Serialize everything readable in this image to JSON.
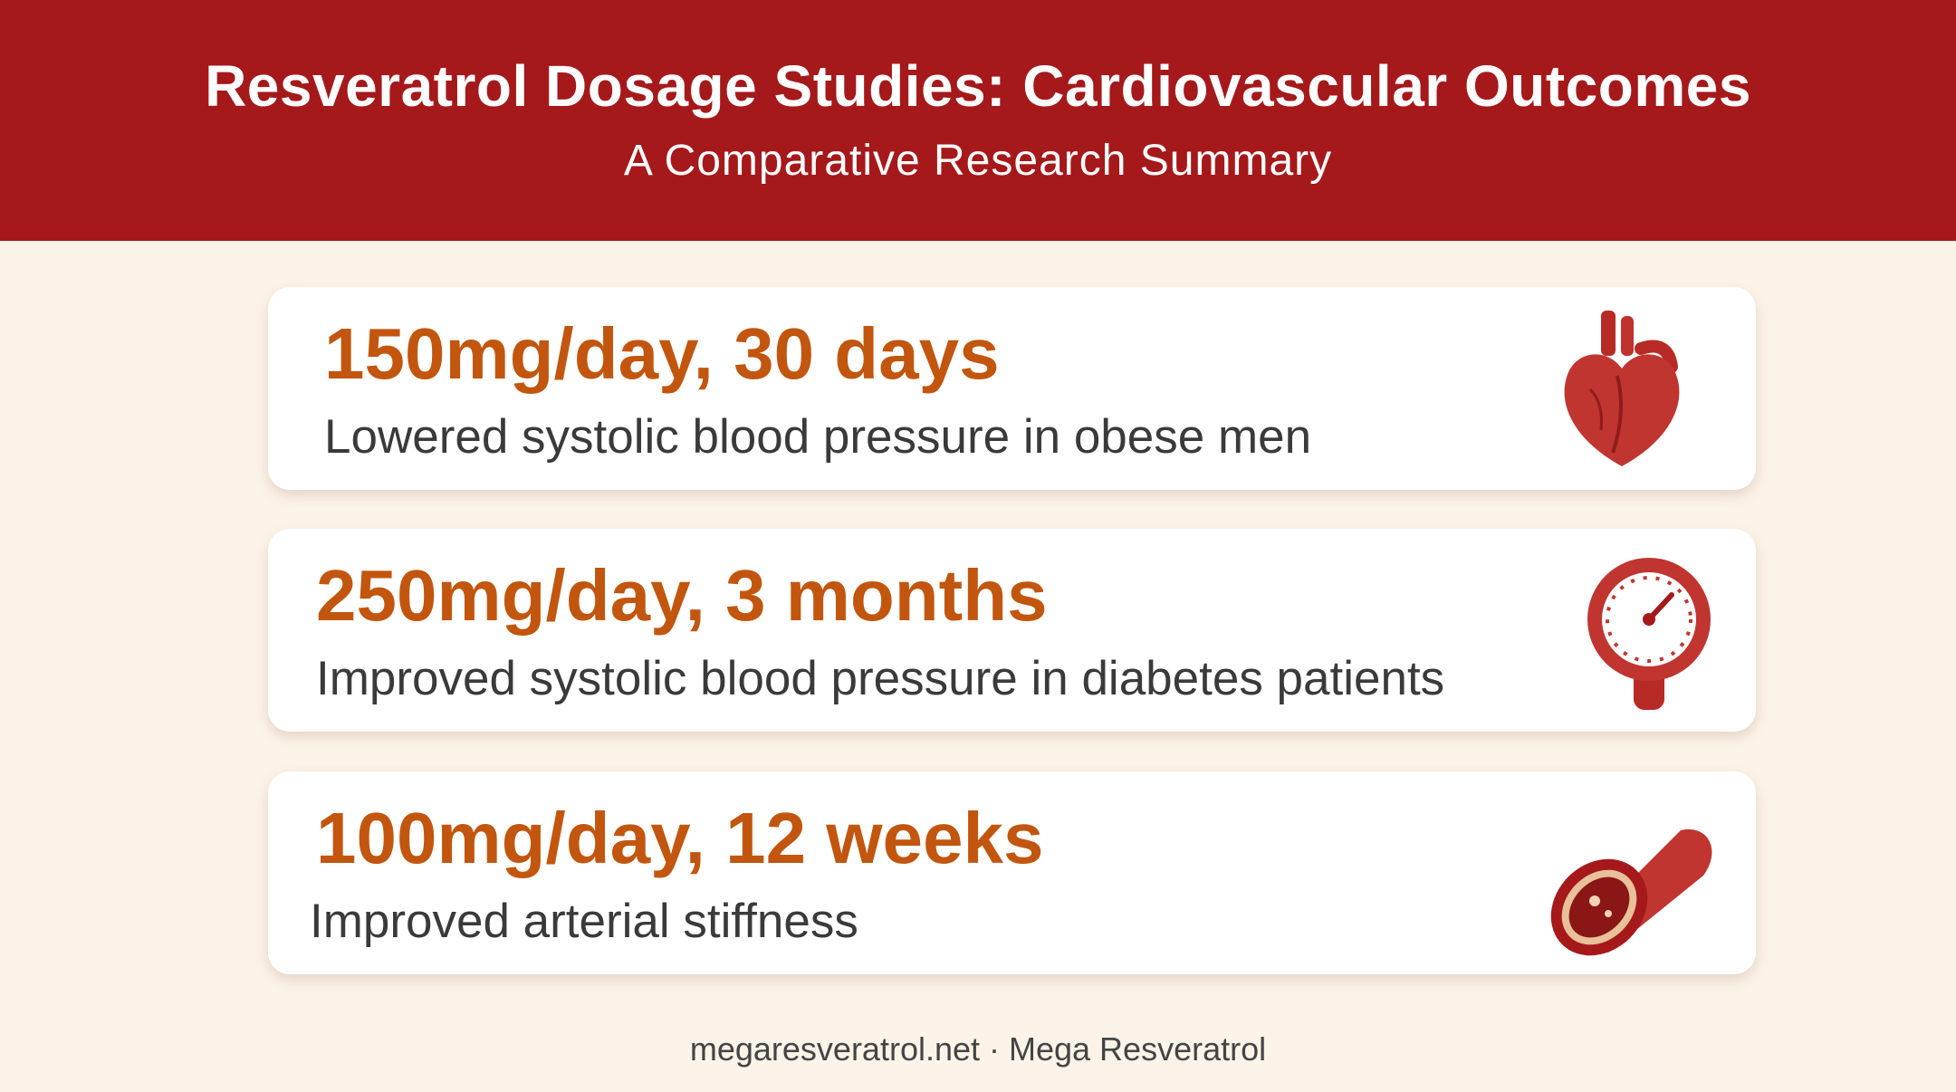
{
  "header": {
    "title": "Resveratrol Dosage Studies: Cardiovascular Outcomes",
    "subtitle": "A Comparative Research Summary"
  },
  "cards": [
    {
      "heading": "150mg/day, 30 days",
      "description": "Lowered systolic blood pressure in obese men"
    },
    {
      "heading": "250mg/day, 3 months",
      "description": "Improved systolic blood pressure in diabetes patients"
    },
    {
      "heading": "100mg/day, 12 weeks",
      "description": "Improved arterial stiffness"
    }
  ],
  "footer": "megaresveratrol.net · Mega Resveratrol"
}
